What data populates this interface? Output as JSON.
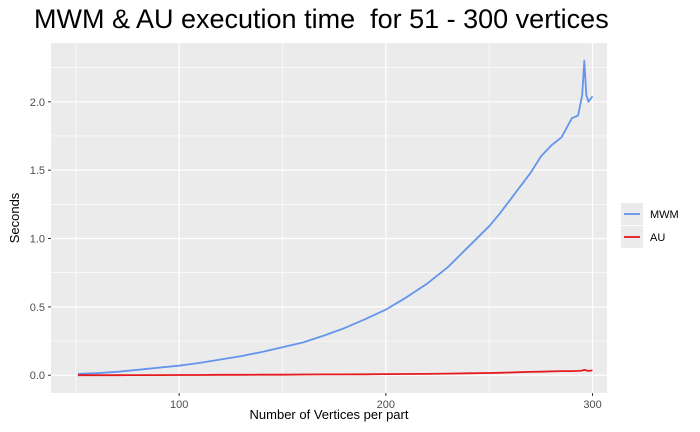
{
  "chart_data": {
    "type": "line",
    "title": "MWM & AU execution time  for 51 - 300 vertices",
    "xlabel": "Number of Vertices per part",
    "ylabel": "Seconds",
    "xlim": [
      38,
      307
    ],
    "ylim": [
      -0.13,
      2.43
    ],
    "x_ticks": [
      100,
      200,
      300
    ],
    "y_ticks": [
      0.0,
      0.5,
      1.0,
      1.5,
      2.0
    ],
    "x_tick_labels": [
      "100",
      "200",
      "300"
    ],
    "y_tick_labels": [
      "0.0",
      "0.5",
      "1.0",
      "1.5",
      "2.0"
    ],
    "grid": true,
    "legend": "right",
    "x": [
      51,
      60,
      70,
      80,
      90,
      100,
      110,
      120,
      130,
      140,
      150,
      160,
      170,
      180,
      190,
      200,
      210,
      220,
      230,
      240,
      250,
      255,
      260,
      265,
      270,
      275,
      280,
      285,
      290,
      293,
      295,
      296,
      297,
      298,
      300
    ],
    "series": [
      {
        "name": "MWM",
        "color": "#6495ed",
        "values": [
          0.01,
          0.015,
          0.025,
          0.04,
          0.055,
          0.07,
          0.09,
          0.115,
          0.14,
          0.17,
          0.205,
          0.24,
          0.29,
          0.345,
          0.41,
          0.48,
          0.57,
          0.67,
          0.79,
          0.94,
          1.09,
          1.18,
          1.28,
          1.38,
          1.48,
          1.6,
          1.68,
          1.74,
          1.88,
          1.9,
          2.05,
          2.3,
          2.05,
          2.0,
          2.04
        ]
      },
      {
        "name": "AU",
        "color": "#e41a1c",
        "values": [
          0.0,
          0.0,
          0.0,
          0.001,
          0.001,
          0.002,
          0.002,
          0.003,
          0.003,
          0.004,
          0.004,
          0.005,
          0.006,
          0.006,
          0.007,
          0.008,
          0.009,
          0.01,
          0.012,
          0.014,
          0.016,
          0.018,
          0.02,
          0.022,
          0.024,
          0.026,
          0.028,
          0.03,
          0.03,
          0.032,
          0.034,
          0.04,
          0.035,
          0.032,
          0.035
        ]
      }
    ]
  }
}
